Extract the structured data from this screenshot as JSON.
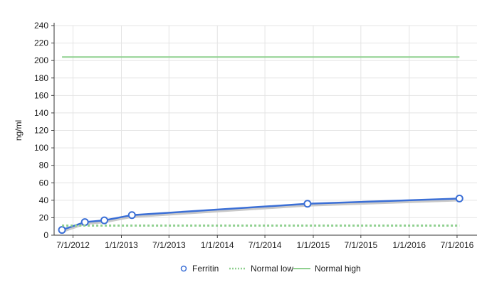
{
  "chart_data": {
    "type": "line",
    "ylabel": "ng/ml",
    "xlabel": "",
    "ylim": [
      0,
      240
    ],
    "y_ticks": [
      0,
      20,
      40,
      60,
      80,
      100,
      120,
      140,
      160,
      180,
      200,
      220,
      240
    ],
    "x_ticks": [
      "7/1/2012",
      "1/1/2013",
      "7/1/2013",
      "1/1/2014",
      "7/1/2014",
      "1/1/2015",
      "7/1/2015",
      "1/1/2016",
      "7/1/2016"
    ],
    "xlim": [
      "2012-04-20",
      "2016-09-15"
    ],
    "grid": true,
    "legend_position": "bottom",
    "series": [
      {
        "name": "Ferritin",
        "style": "line-with-markers",
        "color": "#3b6fd6",
        "points": [
          {
            "x": "2012-05-20",
            "y": 6
          },
          {
            "x": "2012-08-15",
            "y": 15
          },
          {
            "x": "2012-10-28",
            "y": 17
          },
          {
            "x": "2013-02-10",
            "y": 23
          },
          {
            "x": "2014-12-10",
            "y": 36
          },
          {
            "x": "2016-07-10",
            "y": 42
          }
        ]
      },
      {
        "name": "Normal low",
        "style": "dotted",
        "color": "#8fd08f",
        "points": [
          {
            "x": "2012-05-20",
            "y": 11
          },
          {
            "x": "2016-07-10",
            "y": 11
          }
        ]
      },
      {
        "name": "Normal high",
        "style": "solid",
        "color": "#8fd08f",
        "points": [
          {
            "x": "2012-05-20",
            "y": 204
          },
          {
            "x": "2016-07-10",
            "y": 204
          }
        ]
      }
    ]
  }
}
